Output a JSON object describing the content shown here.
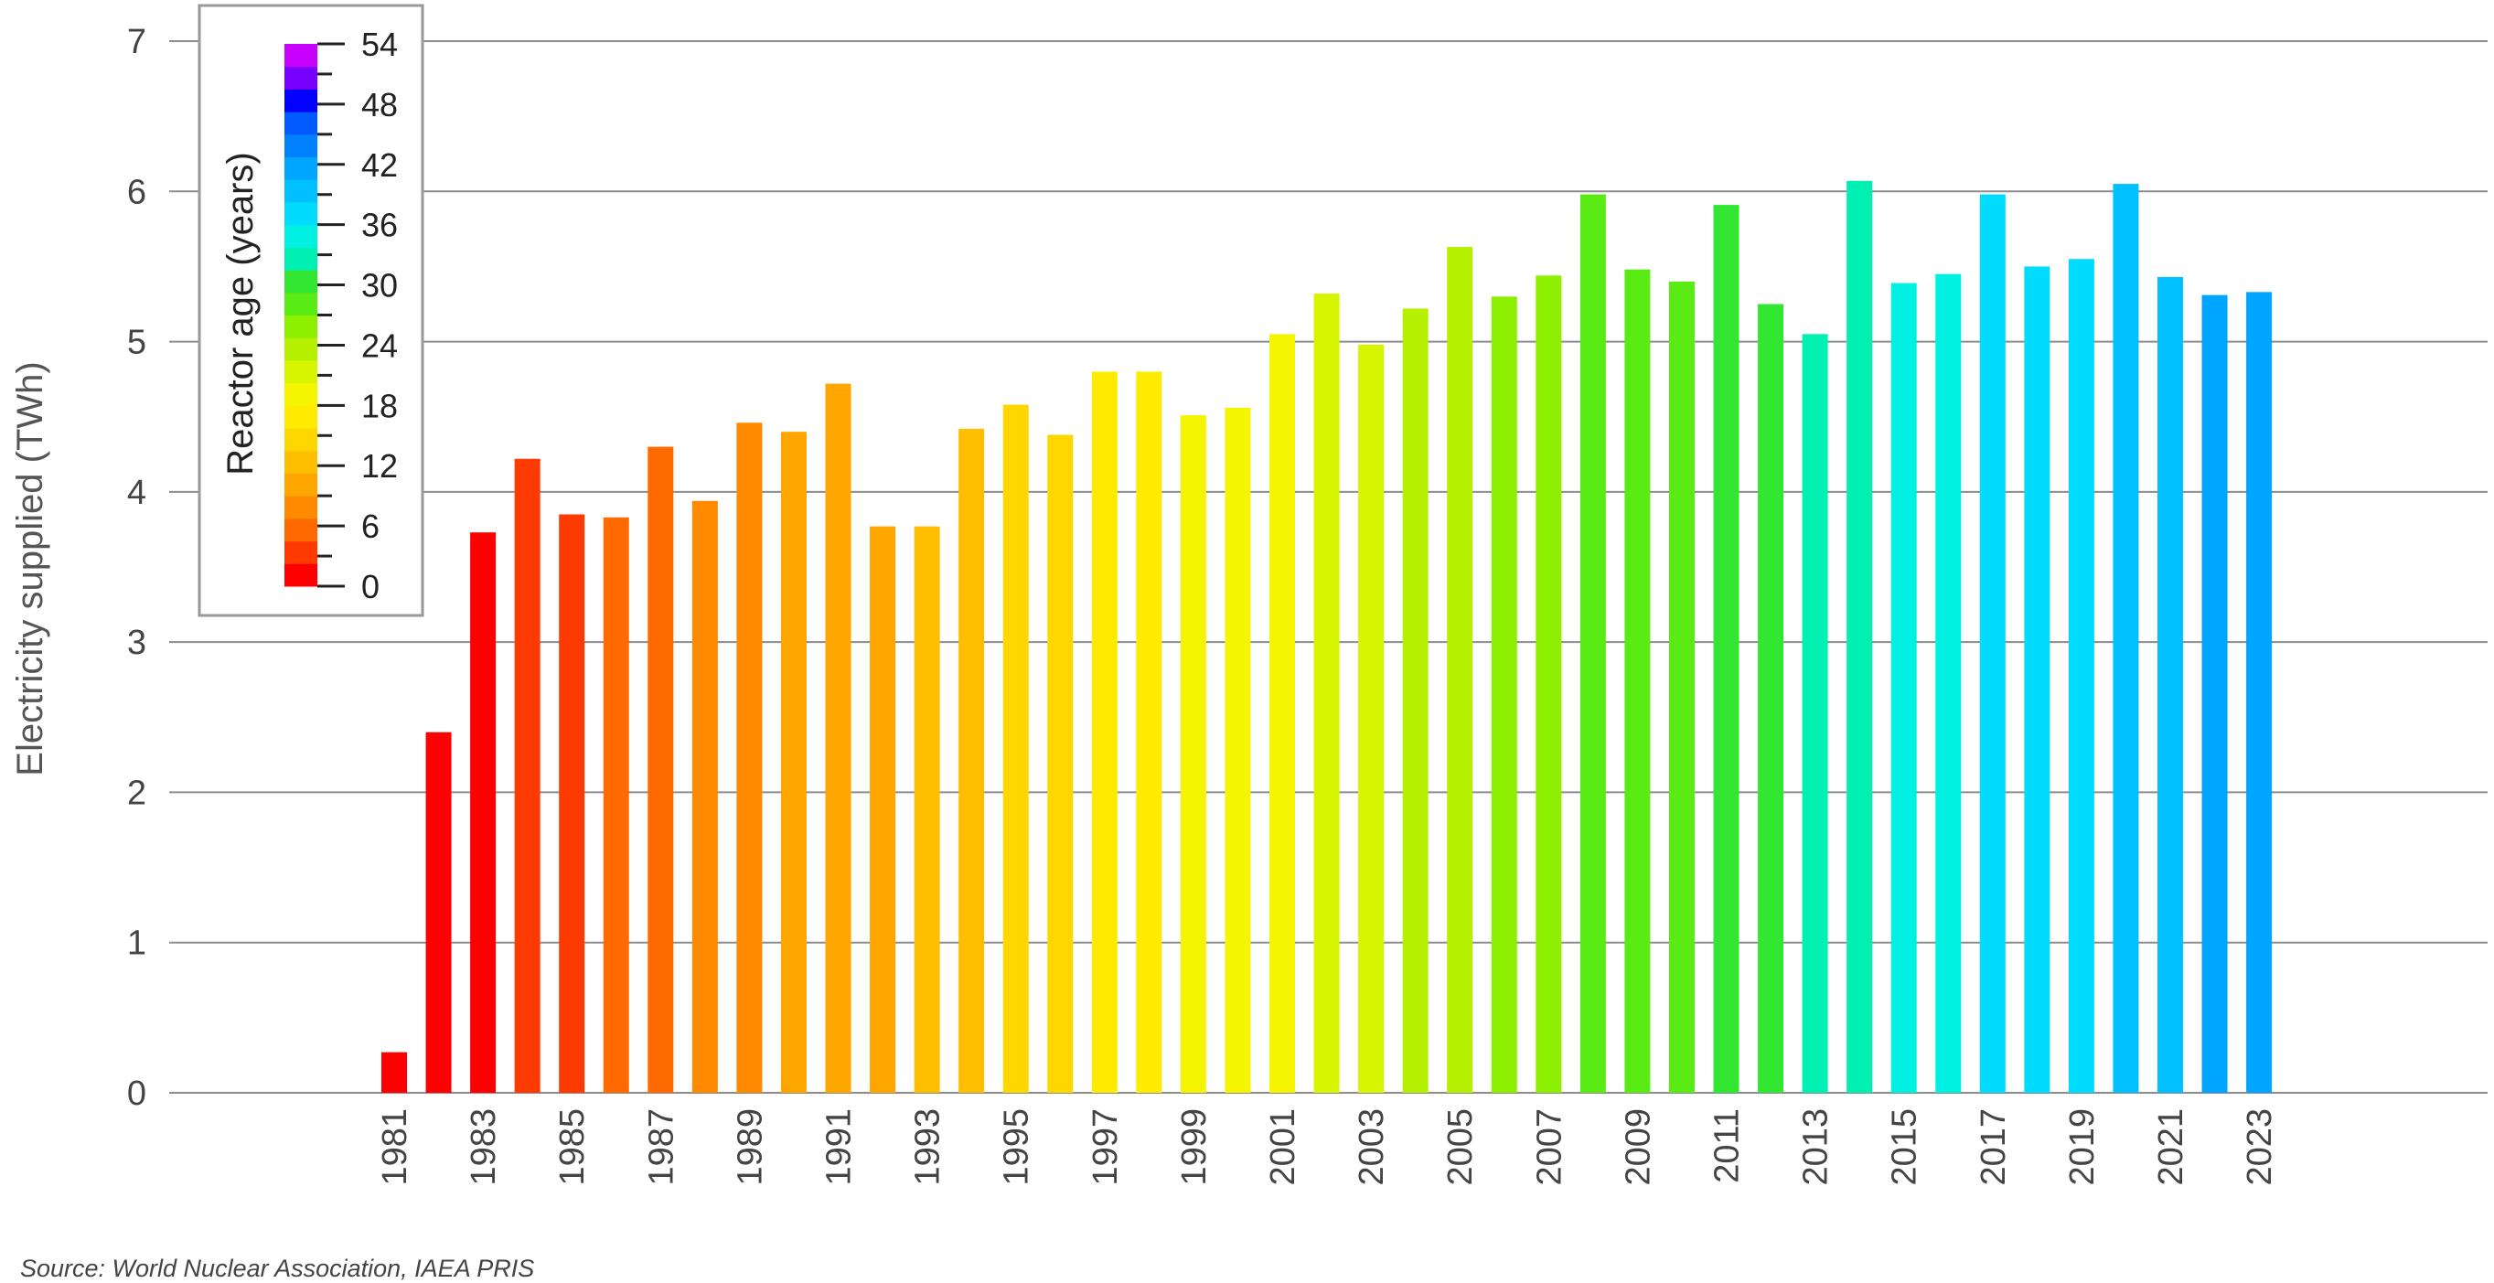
{
  "chart_data": {
    "type": "bar",
    "ylabel": "Electricity supplied (TWh)",
    "xlabel": "",
    "ylim": [
      0,
      7
    ],
    "yticks": [
      "0",
      "1",
      "2",
      "3",
      "4",
      "5",
      "6",
      "7"
    ],
    "grid": true,
    "categories": [
      1981,
      1982,
      1983,
      1984,
      1985,
      1986,
      1987,
      1988,
      1989,
      1990,
      1991,
      1992,
      1993,
      1994,
      1995,
      1996,
      1997,
      1998,
      1999,
      2000,
      2001,
      2002,
      2003,
      2004,
      2005,
      2006,
      2007,
      2008,
      2009,
      2010,
      2011,
      2012,
      2013,
      2014,
      2015,
      2016,
      2017,
      2018,
      2019,
      2020,
      2021,
      2022,
      2023
    ],
    "x_tick_labels": [
      "1981",
      "1983",
      "1985",
      "1987",
      "1989",
      "1991",
      "1993",
      "1995",
      "1997",
      "1999",
      "2001",
      "2003",
      "2005",
      "2007",
      "2009",
      "2011",
      "2013",
      "2015",
      "2017",
      "2019",
      "2021",
      "2023"
    ],
    "values": [
      0.27,
      2.4,
      3.73,
      4.22,
      3.85,
      3.83,
      4.3,
      3.94,
      4.46,
      4.4,
      4.72,
      3.77,
      3.77,
      4.42,
      4.58,
      4.38,
      4.8,
      4.8,
      4.51,
      4.56,
      5.05,
      5.32,
      4.98,
      5.22,
      5.63,
      5.3,
      5.44,
      5.98,
      5.48,
      5.4,
      5.91,
      5.25,
      5.05,
      6.07,
      5.39,
      5.45,
      5.98,
      5.5,
      5.55,
      6.05,
      5.43,
      5.31,
      5.33
    ],
    "reactor_age": [
      0,
      1,
      2,
      3,
      4,
      5,
      6,
      7,
      8,
      9,
      10,
      11,
      12,
      13,
      14,
      15,
      16,
      17,
      18,
      19,
      20,
      21,
      22,
      23,
      24,
      25,
      26,
      27,
      28,
      29,
      30,
      31,
      32,
      33,
      34,
      35,
      36,
      37,
      38,
      39,
      40,
      41,
      42
    ],
    "legend": {
      "title": "Reactor age (years)",
      "tick_labels": [
        "54",
        "48",
        "42",
        "36",
        "30",
        "24",
        "18",
        "12",
        "6",
        "0"
      ],
      "range": [
        0,
        54
      ],
      "placement": "top-left"
    },
    "colors": [
      "#ff0000",
      "#ff3a00",
      "#ff6a00",
      "#ff8a00",
      "#ffa500",
      "#ffbe00",
      "#ffd700",
      "#ffeb00",
      "#f5f500",
      "#d8f500",
      "#b4f000",
      "#8cf000",
      "#5aea14",
      "#32e632",
      "#00f0b4",
      "#00f0e1",
      "#00dcff",
      "#00c0ff",
      "#00a5ff",
      "#0082ff",
      "#005aff",
      "#0000ff",
      "#7800ff",
      "#c800ff"
    ],
    "source": "Source: World Nuclear Association, IAEA PRIS"
  }
}
